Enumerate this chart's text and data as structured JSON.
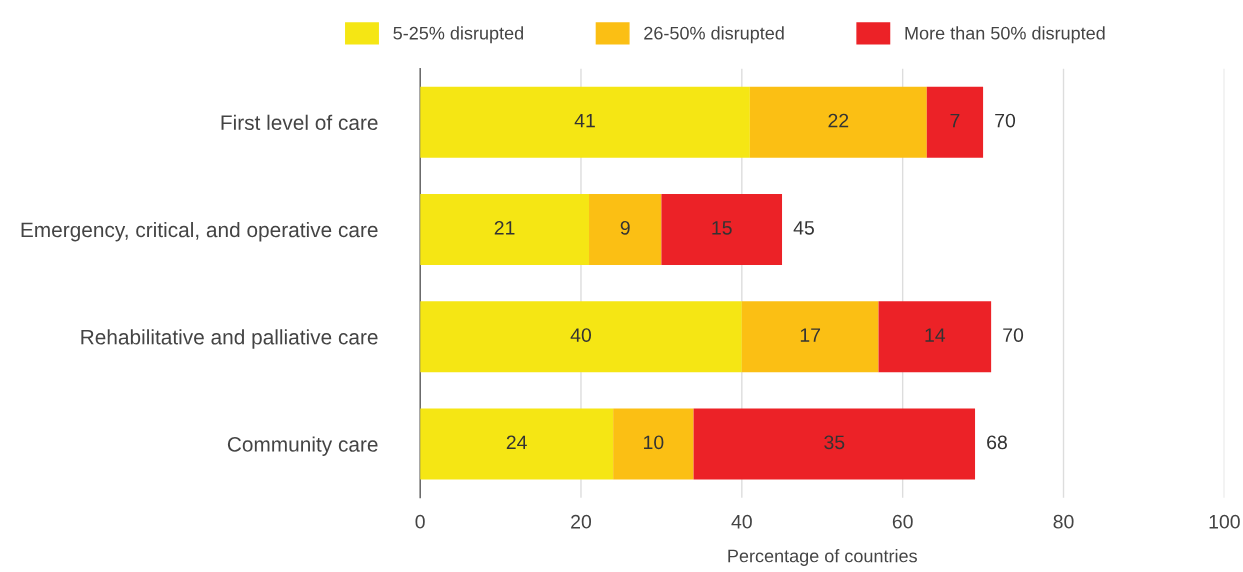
{
  "chart_data": {
    "type": "bar",
    "orientation": "horizontal",
    "stacked": true,
    "xlabel": "Percentage of countries",
    "categories": [
      "First level of care",
      "Emergency, critical, and operative care",
      "Rehabilitative and palliative care",
      "Community care"
    ],
    "series": [
      {
        "name": "5-25% disrupted",
        "color": "#f5e614",
        "values": [
          41,
          21,
          40,
          24
        ]
      },
      {
        "name": "26-50% disrupted",
        "color": "#fbbf14",
        "values": [
          22,
          9,
          17,
          10
        ]
      },
      {
        "name": "More than 50% disrupted",
        "color": "#ec2227",
        "values": [
          7,
          15,
          14,
          35
        ]
      }
    ],
    "totals": [
      "70",
      "45",
      "70",
      "68"
    ],
    "data_labels": true,
    "xlim": [
      0,
      100
    ],
    "xticks": [
      0,
      20,
      40,
      60,
      80,
      100
    ],
    "grid": "x",
    "legend": "top"
  }
}
